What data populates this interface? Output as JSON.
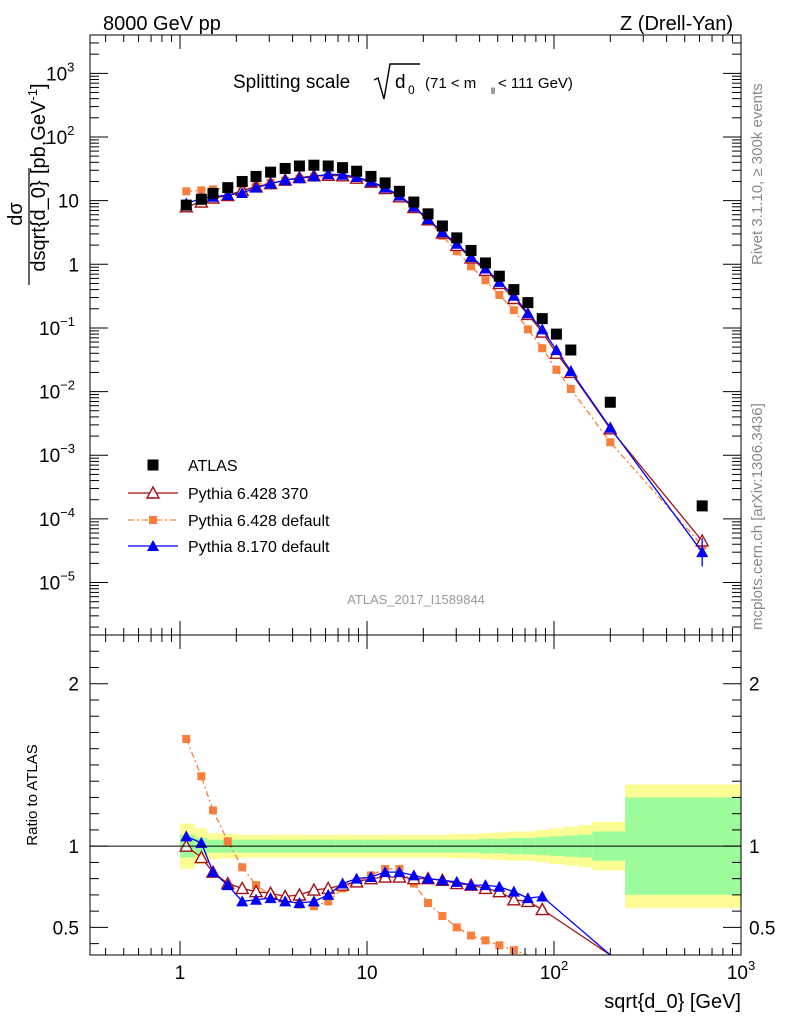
{
  "header": {
    "left": "8000 GeV pp",
    "right": "Z (Drell-Yan)"
  },
  "side_labels": {
    "top": "Rivet 3.1.10, ≥ 300k events",
    "bottom": "mcplots.cern.ch [arXiv:1306.3436]"
  },
  "chart_data": {
    "type": "scatter",
    "title_main": "Splitting scale",
    "title_sqrt": "d",
    "title_sub": "0",
    "title_range": "(71 < m",
    "title_range_sub": "ll",
    "title_range_end": " < 111 GeV)",
    "watermark": "ATLAS_2017_I1589844",
    "xlabel": "sqrt{d_0} [GeV]",
    "ylabel": "dσ/dsqrt{d_0} [pb,GeV⁻¹]",
    "ylabel_num": "dσ",
    "ylabel_den": "dsqrt{d_0}",
    "ylabel_unit": " [pb,GeV",
    "ylabel_unit_sup": "-1",
    "ylabel_unit_end": "]",
    "ratio_ylabel": "Ratio to ATLAS",
    "xscale": "log",
    "yscale": "log",
    "xlim": [
      0.33,
      1000
    ],
    "ylim": [
      1.5e-06,
      4000
    ],
    "ratio_ylim": [
      0.33,
      2.3
    ],
    "x_tick_labels": [
      "1",
      "10",
      "10²",
      "10³"
    ],
    "ratio_tick_labels": [
      "0.5",
      "1",
      "2"
    ],
    "legend_position": "lower-left",
    "series": [
      {
        "name": "ATLAS",
        "marker": "square",
        "color": "#000000",
        "x": [
          1.08,
          1.3,
          1.5,
          1.8,
          2.15,
          2.55,
          3.05,
          3.65,
          4.35,
          5.2,
          6.2,
          7.4,
          8.8,
          10.5,
          12.5,
          14.9,
          17.8,
          21.2,
          25.3,
          30.2,
          36,
          43,
          51,
          61,
          72.5,
          86.5,
          103,
          123,
          200,
          620
        ],
        "y": [
          8.5,
          10.5,
          13,
          16,
          20,
          24,
          28,
          32,
          35,
          36,
          35,
          33,
          29,
          24,
          19,
          14,
          9.5,
          6.2,
          4,
          2.6,
          1.65,
          1.05,
          0.65,
          0.4,
          0.25,
          0.14,
          0.08,
          0.045,
          0.0068,
          0.00016
        ]
      },
      {
        "name": "Pythia 6.428 370",
        "marker": "open-triangle",
        "color": "#a50f15",
        "x": [
          1.08,
          1.3,
          1.5,
          1.8,
          2.15,
          2.55,
          3.05,
          3.65,
          4.35,
          5.2,
          6.2,
          7.4,
          8.8,
          10.5,
          12.5,
          14.9,
          17.8,
          21.2,
          25.3,
          30.2,
          36,
          43,
          51,
          61,
          72.5,
          86.5,
          103,
          123,
          200,
          620
        ],
        "y": [
          8,
          9.5,
          11,
          12,
          14.5,
          16.5,
          18.5,
          21,
          23,
          24.5,
          25,
          24.5,
          22.5,
          19.5,
          15.5,
          11.5,
          7.8,
          5,
          3.1,
          1.98,
          1.26,
          0.8,
          0.5,
          0.29,
          0.163,
          0.086,
          0.04,
          0.02,
          0.0026,
          4.5e-05
        ]
      },
      {
        "name": "Pythia 6.428 default",
        "marker": "filled-square-small",
        "color": "#f77f3b",
        "x": [
          1.08,
          1.3,
          1.5,
          1.8,
          2.15,
          2.55,
          3.05,
          3.65,
          4.35,
          5.2,
          6.2,
          7.4,
          8.8,
          10.5,
          12.5,
          14.9,
          17.8,
          21.2,
          25.3,
          30.2,
          36,
          43,
          51,
          61,
          72.5,
          86.5,
          103,
          123,
          200,
          620
        ],
        "y": [
          14,
          14.5,
          15,
          16,
          17,
          18,
          19,
          20.5,
          22,
          23,
          24,
          25,
          23,
          20,
          16,
          12,
          8,
          4.8,
          2.8,
          1.6,
          0.93,
          0.56,
          0.33,
          0.19,
          0.095,
          0.048,
          0.022,
          0.011,
          0.0016,
          3.8e-05
        ]
      },
      {
        "name": "Pythia 8.170 default",
        "marker": "filled-triangle",
        "color": "#0000ff",
        "x": [
          1.08,
          1.3,
          1.5,
          1.8,
          2.15,
          2.55,
          3.05,
          3.65,
          4.35,
          5.2,
          6.2,
          7.4,
          8.8,
          10.5,
          12.5,
          14.9,
          17.8,
          21.2,
          25.3,
          30.2,
          36,
          43,
          51,
          61,
          72.5,
          86.5,
          103,
          123,
          200,
          620
        ],
        "y": [
          9,
          10.8,
          11.5,
          12.2,
          13.2,
          16,
          18.5,
          21,
          22.5,
          24,
          26,
          25.5,
          23.5,
          20,
          16,
          12,
          8,
          5.1,
          3.2,
          2.1,
          1.3,
          0.86,
          0.53,
          0.32,
          0.17,
          0.095,
          0.045,
          0.021,
          0.0027,
          3e-05
        ]
      }
    ],
    "ratio_series": [
      {
        "name": "Pythia 6.428 370",
        "x": [
          1.08,
          1.3,
          1.5,
          1.8,
          2.15,
          2.55,
          3.05,
          3.65,
          4.35,
          5.2,
          6.2,
          7.4,
          8.8,
          10.5,
          12.5,
          14.9,
          17.8,
          21.2,
          25.3,
          30.2,
          36,
          43,
          51,
          61,
          72.5,
          86.5,
          200
        ],
        "y": [
          1.0,
          0.93,
          0.84,
          0.77,
          0.74,
          0.72,
          0.71,
          0.69,
          0.7,
          0.73,
          0.74,
          0.76,
          0.78,
          0.8,
          0.81,
          0.81,
          0.8,
          0.8,
          0.79,
          0.77,
          0.76,
          0.74,
          0.72,
          0.67,
          0.66,
          0.61,
          0.33
        ]
      },
      {
        "name": "Pythia 6.428 default",
        "x": [
          1.08,
          1.3,
          1.5,
          1.8,
          2.15,
          2.55,
          3.05,
          3.65,
          4.35,
          5.2,
          6.2,
          7.4,
          8.8,
          10.5,
          12.5,
          14.9,
          17.8,
          21.2,
          25.3,
          30.2,
          36,
          43,
          51,
          61,
          72.5
        ],
        "y": [
          1.66,
          1.43,
          1.22,
          1.03,
          0.87,
          0.76,
          0.7,
          0.67,
          0.64,
          0.63,
          0.66,
          0.74,
          0.78,
          0.82,
          0.86,
          0.86,
          0.77,
          0.65,
          0.57,
          0.5,
          0.45,
          0.42,
          0.39,
          0.36,
          0.33
        ]
      },
      {
        "name": "Pythia 8.170 default",
        "x": [
          1.08,
          1.3,
          1.5,
          1.8,
          2.15,
          2.55,
          3.05,
          3.65,
          4.35,
          5.2,
          6.2,
          7.4,
          8.8,
          10.5,
          12.5,
          14.9,
          17.8,
          21.2,
          25.3,
          30.2,
          36,
          43,
          51,
          61,
          72.5,
          86.5,
          200
        ],
        "y": [
          1.06,
          1.02,
          0.84,
          0.76,
          0.66,
          0.67,
          0.68,
          0.66,
          0.65,
          0.66,
          0.7,
          0.77,
          0.8,
          0.81,
          0.84,
          0.84,
          0.82,
          0.8,
          0.79,
          0.78,
          0.76,
          0.76,
          0.75,
          0.72,
          0.68,
          0.69,
          0.33
        ]
      }
    ],
    "uncertainty_bands": {
      "stat_color": "#9cfc9c",
      "total_color": "#fcfc94",
      "x_edges": [
        1.0,
        1.2,
        1.4,
        1.65,
        2.0,
        2.4,
        2.8,
        3.3,
        4.0,
        4.7,
        5.7,
        6.8,
        8.1,
        9.6,
        11.5,
        13.7,
        16.3,
        19.5,
        23.2,
        27.6,
        33,
        39.3,
        47,
        56,
        66.5,
        79.5,
        94.5,
        112.5,
        134,
        160,
        240,
        1000
      ],
      "total": [
        0.14,
        0.11,
        0.08,
        0.075,
        0.07,
        0.07,
        0.07,
        0.07,
        0.07,
        0.07,
        0.07,
        0.07,
        0.07,
        0.07,
        0.07,
        0.07,
        0.07,
        0.07,
        0.07,
        0.075,
        0.075,
        0.08,
        0.085,
        0.09,
        0.09,
        0.1,
        0.11,
        0.12,
        0.13,
        0.15,
        0.38
      ],
      "stat": [
        0.07,
        0.05,
        0.04,
        0.04,
        0.04,
        0.04,
        0.04,
        0.04,
        0.04,
        0.04,
        0.04,
        0.04,
        0.04,
        0.04,
        0.04,
        0.04,
        0.04,
        0.04,
        0.04,
        0.04,
        0.04,
        0.045,
        0.045,
        0.05,
        0.05,
        0.055,
        0.06,
        0.065,
        0.07,
        0.09,
        0.3
      ]
    }
  }
}
